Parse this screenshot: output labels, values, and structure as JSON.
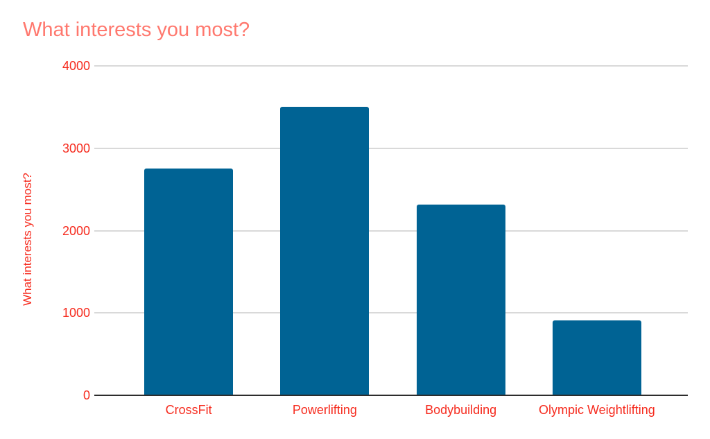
{
  "chart_data": {
    "type": "bar",
    "title": "What interests you most?",
    "ylabel": "What interests you most?",
    "xlabel": "",
    "categories": [
      "CrossFit",
      "Powerlifting",
      "Bodybuilding",
      "Olympic Weightlifting"
    ],
    "values": [
      2750,
      3500,
      2320,
      910
    ],
    "ylim": [
      0,
      4000
    ],
    "yticks": [
      0,
      1000,
      2000,
      3000,
      4000
    ],
    "grid": "horizontal",
    "legend_position": "none",
    "bar_color": "#006394",
    "title_color": "#ff786e",
    "label_color": "#f62b1e",
    "gridline_color": "#d9d9d9",
    "axis_line_color": "#2d2d2d",
    "background_color": "#ffffff"
  }
}
